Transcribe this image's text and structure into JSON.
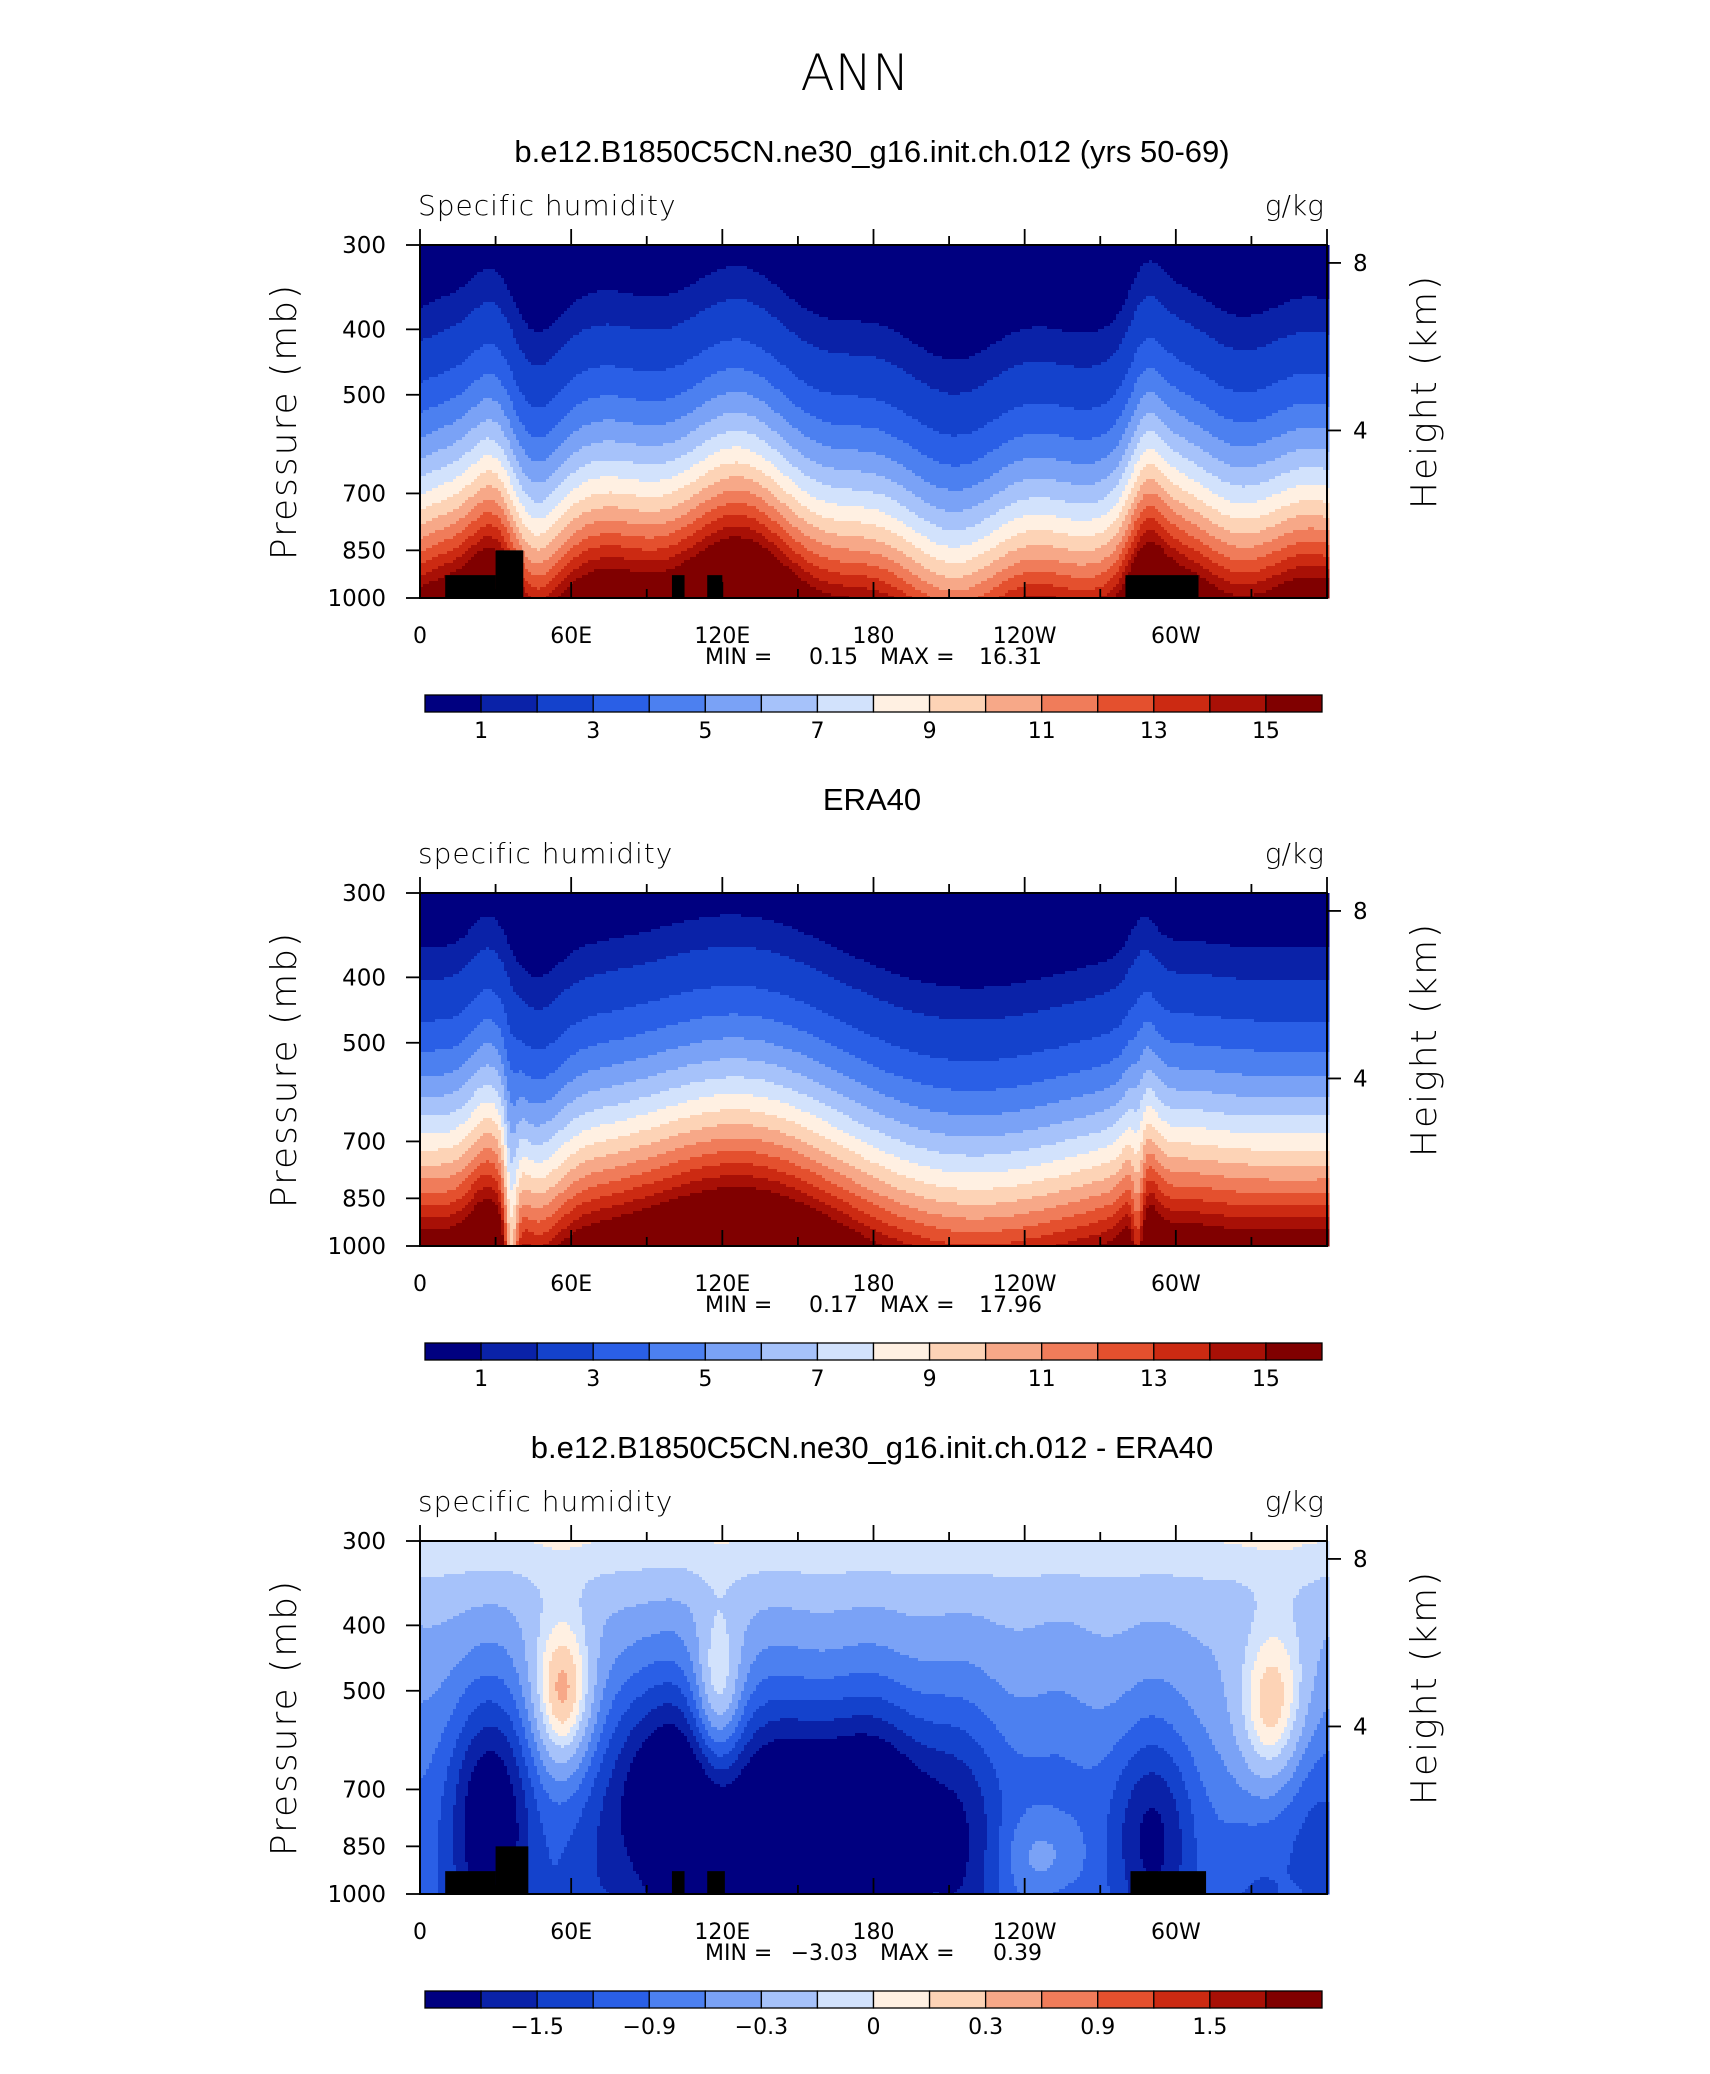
{
  "figure": {
    "title": "ANN"
  },
  "colors": {
    "levels_colors": [
      "#000080",
      "#0a22a8",
      "#1442cc",
      "#2a5fe6",
      "#4c80f0",
      "#7aa2f6",
      "#a6c2fa",
      "#d2e2fc",
      "#fff0e2",
      "#fdd3b6",
      "#f7a888",
      "#f07c5a",
      "#e4502e",
      "#cc2a12",
      "#a81006",
      "#800000"
    ]
  },
  "chart_data": [
    {
      "type": "heatmap",
      "title": "b.e12.B1850C5CN.ne30_g16.init.ch.012 (yrs 50-69)",
      "left_label": "Specific humidity",
      "right_label": "g/kg",
      "ylabel": "Pressure (mb)",
      "ylabel_right": "Height (km)",
      "x_ticks": [
        "0",
        "60E",
        "120E",
        "180",
        "120W",
        "60W"
      ],
      "x_tick_lon": [
        0,
        60,
        120,
        180,
        240,
        300
      ],
      "xlim_lon": [
        0,
        360
      ],
      "y_ticks": [
        "300",
        "400",
        "500",
        "700",
        "850",
        "1000"
      ],
      "y_tick_values": [
        300,
        400,
        500,
        700,
        850,
        1000
      ],
      "ylim": [
        1000,
        300
      ],
      "y_right_ticks": [
        "8",
        "4"
      ],
      "y_right_values": [
        8,
        4
      ],
      "min_text": "MIN =",
      "min_value": "0.15",
      "max_text": "MAX =",
      "max_value": "16.31",
      "colorbar_labels": [
        "1",
        "3",
        "5",
        "7",
        "9",
        "11",
        "13",
        "15"
      ],
      "levels": [
        0.5,
        1,
        2,
        3,
        4,
        5,
        6,
        7,
        8,
        9,
        10,
        11,
        12,
        13,
        14,
        15
      ],
      "surface_mask": [
        [
          10,
          30,
          925,
          1000
        ],
        [
          30,
          41,
          850,
          1000
        ],
        [
          100,
          105,
          925,
          1000
        ],
        [
          114,
          120,
          925,
          1000
        ],
        [
          280,
          309,
          925,
          1000
        ]
      ]
    },
    {
      "type": "heatmap",
      "title": "ERA40",
      "left_label": "specific humidity",
      "right_label": "g/kg",
      "ylabel": "Pressure (mb)",
      "ylabel_right": "Height (km)",
      "x_ticks": [
        "0",
        "60E",
        "120E",
        "180",
        "120W",
        "60W"
      ],
      "x_tick_lon": [
        0,
        60,
        120,
        180,
        240,
        300
      ],
      "xlim_lon": [
        0,
        360
      ],
      "y_ticks": [
        "300",
        "400",
        "500",
        "700",
        "850",
        "1000"
      ],
      "y_tick_values": [
        300,
        400,
        500,
        700,
        850,
        1000
      ],
      "ylim": [
        1000,
        300
      ],
      "y_right_ticks": [
        "8",
        "4"
      ],
      "y_right_values": [
        8,
        4
      ],
      "min_text": "MIN =",
      "min_value": "0.17",
      "max_text": "MAX =",
      "max_value": "17.96",
      "colorbar_labels": [
        "1",
        "3",
        "5",
        "7",
        "9",
        "11",
        "13",
        "15"
      ],
      "levels": [
        0.5,
        1,
        2,
        3,
        4,
        5,
        6,
        7,
        8,
        9,
        10,
        11,
        12,
        13,
        14,
        15
      ],
      "surface_mask": []
    },
    {
      "type": "heatmap",
      "title": "b.e12.B1850C5CN.ne30_g16.init.ch.012 - ERA40",
      "left_label": "specific humidity",
      "right_label": "g/kg",
      "ylabel": "Pressure (mb)",
      "ylabel_right": "Height (km)",
      "x_ticks": [
        "0",
        "60E",
        "120E",
        "180",
        "120W",
        "60W"
      ],
      "x_tick_lon": [
        0,
        60,
        120,
        180,
        240,
        300
      ],
      "xlim_lon": [
        0,
        360
      ],
      "y_ticks": [
        "300",
        "400",
        "500",
        "700",
        "850",
        "1000"
      ],
      "y_tick_values": [
        300,
        400,
        500,
        700,
        850,
        1000
      ],
      "ylim": [
        1000,
        300
      ],
      "y_right_ticks": [
        "8",
        "4"
      ],
      "y_right_values": [
        8,
        4
      ],
      "min_text": "MIN =",
      "min_value": "−3.03",
      "max_text": "MAX =",
      "max_value": "0.39",
      "colorbar_labels": [
        "−1.5",
        "−0.9",
        "−0.3",
        "0",
        "0.3",
        "0.9",
        "1.5"
      ],
      "levels": [
        -2.1,
        -1.8,
        -1.5,
        -1.2,
        -0.9,
        -0.6,
        -0.3,
        -0.1,
        0.1,
        0.3,
        0.6,
        0.9,
        1.2,
        1.5,
        1.8,
        2.1
      ],
      "surface_mask": [
        [
          10,
          30,
          925,
          1000
        ],
        [
          30,
          43,
          850,
          1000
        ],
        [
          100,
          105,
          925,
          1000
        ],
        [
          114,
          121,
          925,
          1000
        ],
        [
          282,
          312,
          925,
          1000
        ]
      ]
    }
  ]
}
